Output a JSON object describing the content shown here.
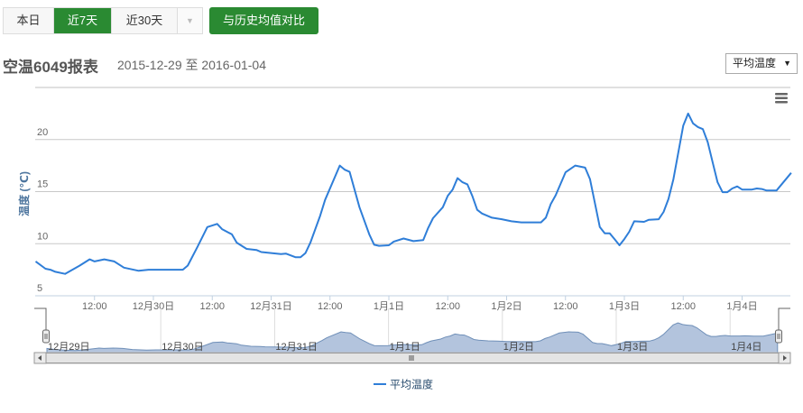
{
  "toolbar": {
    "ranges": [
      {
        "label": "本日",
        "active": false
      },
      {
        "label": "近7天",
        "active": true
      },
      {
        "label": "近30天",
        "active": false
      }
    ],
    "compare_label": "与历史均值对比",
    "accent": "#2a8a32"
  },
  "report": {
    "title": "空温6049报表",
    "date_range": "2015-12-29 至 2016-01-04",
    "metric_select": "平均温度"
  },
  "chart_data": {
    "type": "line",
    "ylabel": "温度 (℃)",
    "ylim": [
      5,
      26
    ],
    "yticks": [
      5,
      10,
      15,
      20
    ],
    "xlim": [
      "2015-12-29 00:00",
      "2016-01-04 10:00"
    ],
    "xticks": [
      {
        "t": "2015-12-29 12:00",
        "label": "12:00"
      },
      {
        "t": "2015-12-30 00:00",
        "label": "12月30日"
      },
      {
        "t": "2015-12-30 12:00",
        "label": "12:00"
      },
      {
        "t": "2015-12-31 00:00",
        "label": "12月31日"
      },
      {
        "t": "2015-12-31 12:00",
        "label": "12:00"
      },
      {
        "t": "2016-01-01 00:00",
        "label": "1月1日"
      },
      {
        "t": "2016-01-01 12:00",
        "label": "12:00"
      },
      {
        "t": "2016-01-02 00:00",
        "label": "1月2日"
      },
      {
        "t": "2016-01-02 12:00",
        "label": "12:00"
      },
      {
        "t": "2016-01-03 00:00",
        "label": "1月3日"
      },
      {
        "t": "2016-01-03 12:00",
        "label": "12:00"
      },
      {
        "t": "2016-01-04 00:00",
        "label": "1月4日"
      }
    ],
    "navigator_ticks": [
      {
        "t": "2015-12-29 00:00",
        "label": "12月29日"
      },
      {
        "t": "2015-12-30 00:00",
        "label": "12月30日"
      },
      {
        "t": "2015-12-31 00:00",
        "label": "12月31日"
      },
      {
        "t": "2016-01-01 00:00",
        "label": "1月1日"
      },
      {
        "t": "2016-01-02 00:00",
        "label": "1月2日"
      },
      {
        "t": "2016-01-03 00:00",
        "label": "1月3日"
      },
      {
        "t": "2016-01-04 00:00",
        "label": "1月4日"
      }
    ],
    "grid": true,
    "legend": "bottom-center",
    "series": [
      {
        "name": "平均温度",
        "color": "#2f7ed8",
        "points": [
          [
            "2015-12-29 00:00",
            8.3
          ],
          [
            "2015-12-29 02:00",
            7.6
          ],
          [
            "2015-12-29 03:00",
            7.5
          ],
          [
            "2015-12-29 04:00",
            7.3
          ],
          [
            "2015-12-29 06:00",
            7.1
          ],
          [
            "2015-12-29 09:00",
            7.9
          ],
          [
            "2015-12-29 11:00",
            8.5
          ],
          [
            "2015-12-29 12:00",
            8.3
          ],
          [
            "2015-12-29 14:00",
            8.5
          ],
          [
            "2015-12-29 16:00",
            8.3
          ],
          [
            "2015-12-29 18:00",
            7.7
          ],
          [
            "2015-12-29 21:00",
            7.4
          ],
          [
            "2015-12-29 23:00",
            7.5
          ],
          [
            "2015-12-30 06:00",
            7.5
          ],
          [
            "2015-12-30 07:00",
            7.9
          ],
          [
            "2015-12-30 09:00",
            9.7
          ],
          [
            "2015-12-30 11:00",
            11.6
          ],
          [
            "2015-12-30 13:00",
            11.9
          ],
          [
            "2015-12-30 14:00",
            11.4
          ],
          [
            "2015-12-30 16:00",
            10.9
          ],
          [
            "2015-12-30 17:00",
            10.1
          ],
          [
            "2015-12-30 19:00",
            9.5
          ],
          [
            "2015-12-30 21:00",
            9.4
          ],
          [
            "2015-12-30 22:00",
            9.2
          ],
          [
            "2015-12-31 00:00",
            9.1
          ],
          [
            "2015-12-31 02:00",
            9.0
          ],
          [
            "2015-12-31 03:00",
            9.05
          ],
          [
            "2015-12-31 05:00",
            8.7
          ],
          [
            "2015-12-31 06:00",
            8.7
          ],
          [
            "2015-12-31 07:00",
            9.1
          ],
          [
            "2015-12-31 08:00",
            10.1
          ],
          [
            "2015-12-31 10:00",
            12.7
          ],
          [
            "2015-12-31 11:00",
            14.2
          ],
          [
            "2015-12-31 14:00",
            17.5
          ],
          [
            "2015-12-31 15:00",
            17.1
          ],
          [
            "2015-12-31 16:00",
            16.9
          ],
          [
            "2015-12-31 18:00",
            13.5
          ],
          [
            "2015-12-31 20:00",
            10.9
          ],
          [
            "2015-12-31 21:00",
            9.9
          ],
          [
            "2015-12-31 22:00",
            9.8
          ],
          [
            "2016-01-01 00:00",
            9.85
          ],
          [
            "2016-01-01 01:00",
            10.2
          ],
          [
            "2016-01-01 03:00",
            10.5
          ],
          [
            "2016-01-01 05:00",
            10.25
          ],
          [
            "2016-01-01 07:00",
            10.35
          ],
          [
            "2016-01-01 08:00",
            11.5
          ],
          [
            "2016-01-01 09:00",
            12.45
          ],
          [
            "2016-01-01 11:00",
            13.5
          ],
          [
            "2016-01-01 12:00",
            14.6
          ],
          [
            "2016-01-01 13:00",
            15.2
          ],
          [
            "2016-01-01 14:00",
            16.3
          ],
          [
            "2016-01-01 15:00",
            15.9
          ],
          [
            "2016-01-01 16:00",
            15.7
          ],
          [
            "2016-01-01 17:00",
            14.6
          ],
          [
            "2016-01-01 18:00",
            13.25
          ],
          [
            "2016-01-01 19:00",
            12.9
          ],
          [
            "2016-01-01 21:00",
            12.5
          ],
          [
            "2016-01-01 23:00",
            12.35
          ],
          [
            "2016-01-02 01:00",
            12.15
          ],
          [
            "2016-01-02 03:00",
            12.05
          ],
          [
            "2016-01-02 07:00",
            12.05
          ],
          [
            "2016-01-02 08:00",
            12.5
          ],
          [
            "2016-01-02 09:00",
            13.8
          ],
          [
            "2016-01-02 10:00",
            14.65
          ],
          [
            "2016-01-02 12:00",
            16.85
          ],
          [
            "2016-01-02 14:00",
            17.5
          ],
          [
            "2016-01-02 16:00",
            17.3
          ],
          [
            "2016-01-02 17:00",
            16.2
          ],
          [
            "2016-01-02 19:00",
            11.6
          ],
          [
            "2016-01-02 20:00",
            11.0
          ],
          [
            "2016-01-02 21:00",
            11.0
          ],
          [
            "2016-01-02 22:00",
            10.45
          ],
          [
            "2016-01-02 23:00",
            9.85
          ],
          [
            "2016-01-03 00:00",
            10.45
          ],
          [
            "2016-01-03 01:00",
            11.15
          ],
          [
            "2016-01-03 02:00",
            12.15
          ],
          [
            "2016-01-03 04:00",
            12.1
          ],
          [
            "2016-01-03 05:00",
            12.3
          ],
          [
            "2016-01-03 07:00",
            12.35
          ],
          [
            "2016-01-03 08:00",
            13.05
          ],
          [
            "2016-01-03 09:00",
            14.3
          ],
          [
            "2016-01-03 10:00",
            16.2
          ],
          [
            "2016-01-03 12:00",
            21.35
          ],
          [
            "2016-01-03 13:00",
            22.5
          ],
          [
            "2016-01-03 14:00",
            21.55
          ],
          [
            "2016-01-03 15:00",
            21.2
          ],
          [
            "2016-01-03 16:00",
            21.0
          ],
          [
            "2016-01-03 17:00",
            19.75
          ],
          [
            "2016-01-03 18:00",
            17.8
          ],
          [
            "2016-01-03 19:00",
            15.9
          ],
          [
            "2016-01-03 20:00",
            14.95
          ],
          [
            "2016-01-03 21:00",
            14.95
          ],
          [
            "2016-01-03 22:00",
            15.3
          ],
          [
            "2016-01-03 23:00",
            15.5
          ],
          [
            "2016-01-04 00:00",
            15.2
          ],
          [
            "2016-01-04 02:00",
            15.2
          ],
          [
            "2016-01-04 03:00",
            15.3
          ],
          [
            "2016-01-04 04:00",
            15.25
          ],
          [
            "2016-01-04 05:00",
            15.1
          ],
          [
            "2016-01-04 07:00",
            15.1
          ],
          [
            "2016-01-04 10:00",
            16.8
          ]
        ]
      }
    ],
    "navigator_color": "#b3c4dd"
  }
}
